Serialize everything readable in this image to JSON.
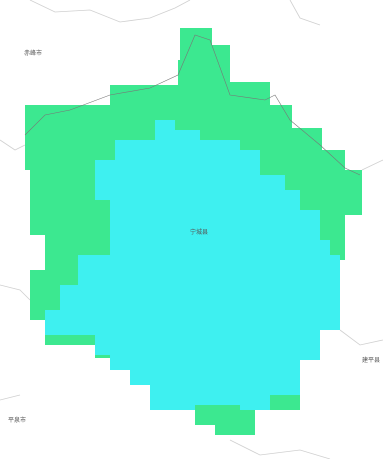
{
  "labels": [
    {
      "text": "赤峰市"
    },
    {
      "text": "宁城县"
    },
    {
      "text": "平泉市"
    },
    {
      "text": "建平县"
    }
  ]
}
